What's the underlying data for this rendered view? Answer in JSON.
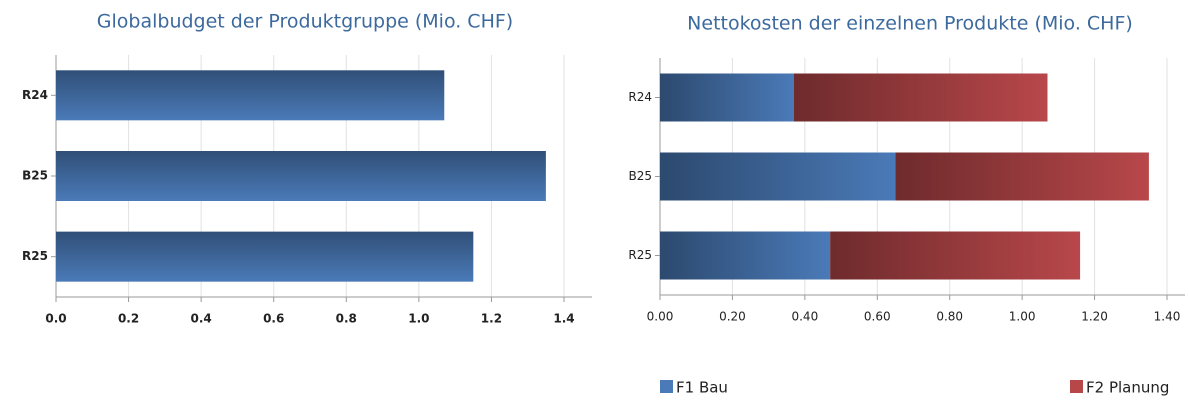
{
  "chart_data": [
    {
      "type": "bar",
      "orientation": "horizontal",
      "title": "Globalbudget der Produktgruppe (Mio. CHF)",
      "categories": [
        "R24",
        "B25",
        "R25"
      ],
      "values": [
        1.07,
        1.35,
        1.15
      ],
      "color": "#4a7ab8",
      "xlim": [
        0,
        1.4
      ],
      "xticks": [
        {
          "value": 0,
          "label": "0.0"
        },
        0.2,
        0.4,
        0.6,
        0.8,
        {
          "value": 1,
          "label": "1.0"
        },
        1.2,
        1.4
      ],
      "grid": true
    },
    {
      "type": "stacked-bar",
      "orientation": "horizontal",
      "title": "Nettokosten der einzelnen Produkte (Mio. CHF)",
      "categories": [
        "R24",
        "B25",
        "R25"
      ],
      "series": [
        {
          "name": "F1 Bau",
          "color": "#4a7ab8",
          "values": [
            0.37,
            0.65,
            0.47
          ]
        },
        {
          "name": "F2 Planung",
          "color": "#b8474a",
          "values": [
            0.7,
            0.7,
            0.69
          ]
        }
      ],
      "xlim": [
        0,
        1.4
      ],
      "xticks": [
        {
          "value": 0,
          "label": "0.00"
        },
        {
          "value": 0.2,
          "label": "0.20"
        },
        {
          "value": 0.4,
          "label": "0.40"
        },
        {
          "value": 0.6,
          "label": "0.60"
        },
        {
          "value": 0.8,
          "label": "0.80"
        },
        {
          "value": 1,
          "label": "1.00"
        },
        {
          "value": 1.2,
          "label": "1.20"
        },
        {
          "value": 1.4,
          "label": "1.40"
        }
      ],
      "grid": true,
      "legend": "bottom"
    }
  ]
}
